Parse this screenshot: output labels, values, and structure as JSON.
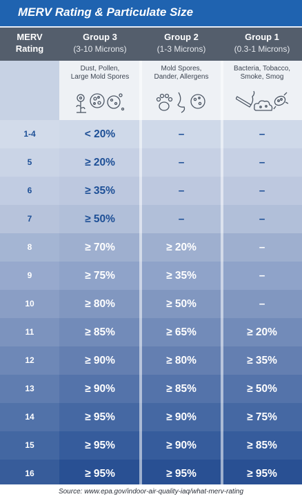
{
  "title": "MERV Rating & Particulate Size",
  "header": {
    "merv_line1": "MERV",
    "merv_line2": "Rating",
    "groups": [
      {
        "name": "Group 3",
        "range": "(3-10 Microns)",
        "desc1": "Dust, Pollen,",
        "desc2": "Large Mold Spores"
      },
      {
        "name": "Group 2",
        "range": "(1-3 Microns)",
        "desc1": "Mold Spores,",
        "desc2": "Dander, Allergens"
      },
      {
        "name": "Group 1",
        "range": "(0.3-1 Microns)",
        "desc1": "Bacteria, Tobacco,",
        "desc2": "Smoke, Smog"
      }
    ]
  },
  "rows": [
    {
      "rating": "1-4",
      "g3": "< 20%",
      "g2": "–",
      "g1": "–",
      "bg": "#ccd7e8",
      "dark": false
    },
    {
      "rating": "5",
      "g3": "≥ 20%",
      "g2": "–",
      "g1": "–",
      "bg": "#c3cee3",
      "dark": false
    },
    {
      "rating": "6",
      "g3": "≥ 35%",
      "g2": "–",
      "g1": "–",
      "bg": "#b9c5de",
      "dark": false
    },
    {
      "rating": "7",
      "g3": "≥ 50%",
      "g2": "–",
      "g1": "–",
      "bg": "#adbbd7",
      "dark": false
    },
    {
      "rating": "8",
      "g3": "≥ 70%",
      "g2": "≥ 20%",
      "g1": "–",
      "bg": "#98abcd",
      "dark": true
    },
    {
      "rating": "9",
      "g3": "≥ 75%",
      "g2": "≥ 35%",
      "g1": "–",
      "bg": "#899ec6",
      "dark": true
    },
    {
      "rating": "10",
      "g3": "≥ 80%",
      "g2": "≥ 50%",
      "g1": "–",
      "bg": "#7a91bd",
      "dark": true
    },
    {
      "rating": "11",
      "g3": "≥ 85%",
      "g2": "≥ 65%",
      "g1": "≥ 20%",
      "bg": "#6a84b5",
      "dark": true
    },
    {
      "rating": "12",
      "g3": "≥ 90%",
      "g2": "≥ 80%",
      "g1": "≥ 35%",
      "bg": "#5b78ad",
      "dark": true
    },
    {
      "rating": "13",
      "g3": "≥ 90%",
      "g2": "≥ 85%",
      "g1": "≥ 50%",
      "bg": "#4a6ba5",
      "dark": true
    },
    {
      "rating": "14",
      "g3": "≥ 95%",
      "g2": "≥ 90%",
      "g1": "≥ 75%",
      "bg": "#3a5f9e",
      "dark": true
    },
    {
      "rating": "15",
      "g3": "≥ 95%",
      "g2": "≥ 90%",
      "g1": "≥ 85%",
      "bg": "#2a5296",
      "dark": true
    },
    {
      "rating": "16",
      "g3": "≥ 95%",
      "g2": "≥ 95%",
      "g1": "≥ 95%",
      "bg": "#1c468d",
      "dark": true
    }
  ],
  "source": "Source: www.epa.gov/indoor-air-quality-iaq/what-merv-rating",
  "colors": {
    "title_bar": "#1f63b0",
    "header_bar": "#545e6c",
    "light_text": "#1d4f96",
    "dark_text": "#ffffff"
  }
}
